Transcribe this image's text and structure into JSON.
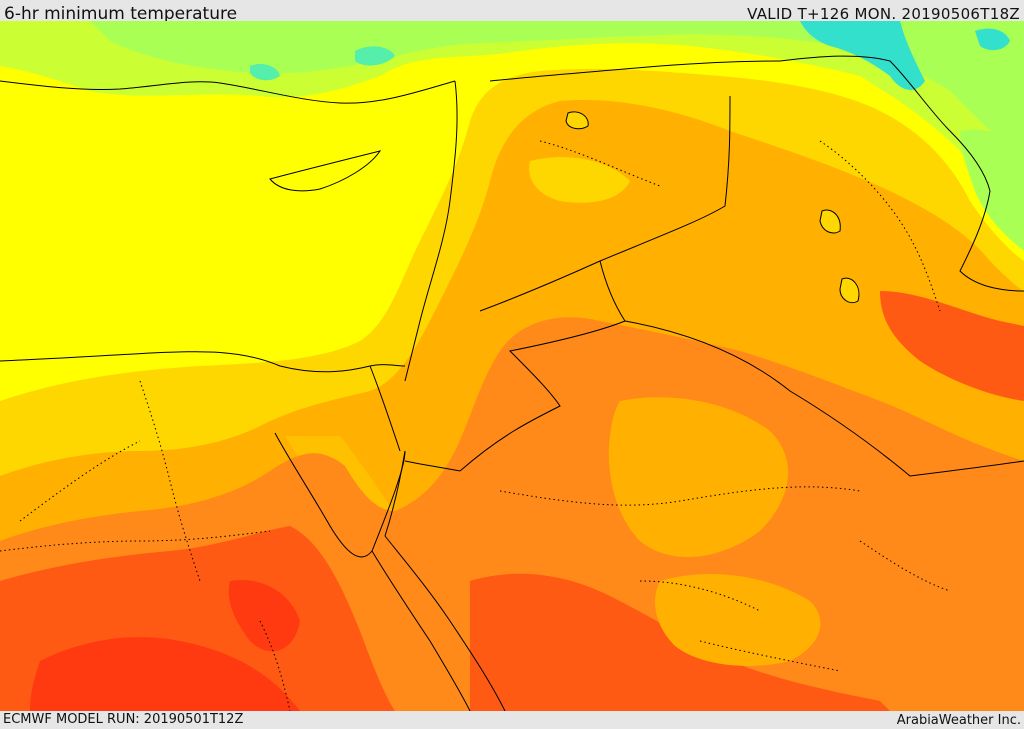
{
  "header": {
    "title": "6-hr minimum temperature",
    "valid": "VALID T+126 MON. 20190506T18Z"
  },
  "footer": {
    "model_run": "ECMWF MODEL RUN: 20190501T12Z",
    "credit": "ArabiaWeather Inc."
  },
  "palette": {
    "cyan": "#33e0cc",
    "green_light": "#aaff55",
    "yellow_green": "#ddff22",
    "yellow": "#ffff00",
    "gold": "#ffd700",
    "amber": "#ffb000",
    "orange": "#ff8a1a",
    "red_orange": "#ff5a14",
    "red": "#ff3a10",
    "border_color": "#000000"
  }
}
